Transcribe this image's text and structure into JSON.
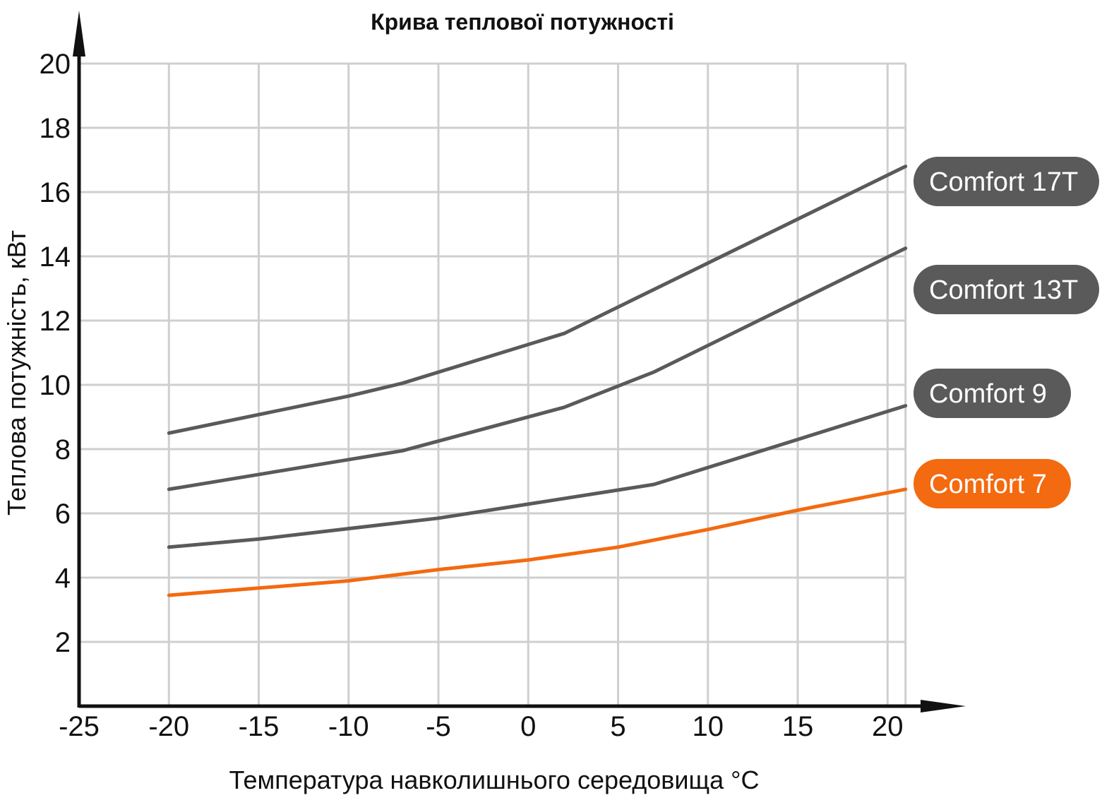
{
  "chart_data": {
    "type": "line",
    "title": "Крива теплової потужності",
    "xlabel": "Температура навколишнього середовища °C",
    "ylabel": "Теплова потужність, кВт",
    "xlim": [
      -25,
      21
    ],
    "ylim": [
      0,
      20
    ],
    "x_ticks": [
      -25,
      -20,
      -15,
      -10,
      -5,
      0,
      5,
      10,
      15,
      20
    ],
    "x_tick_labels": [
      "-25",
      "-20",
      "-15",
      "-10",
      "-5",
      "0",
      "5",
      "10",
      "15",
      "20"
    ],
    "y_ticks": [
      2,
      4,
      6,
      8,
      10,
      12,
      14,
      16,
      18,
      20
    ],
    "y_tick_labels": [
      "2",
      "4",
      "6",
      "8",
      "10",
      "12",
      "14",
      "16",
      "18",
      "20"
    ],
    "x_grid": [
      -20,
      -15,
      -10,
      -5,
      0,
      5,
      10,
      15,
      20,
      21
    ],
    "grid": true,
    "legend_placement": "right, at line ends",
    "series": [
      {
        "name": "Comfort 17T",
        "color": "#5a5a5a",
        "x": [
          -20,
          -10,
          -7,
          2,
          21
        ],
        "y": [
          8.5,
          9.65,
          10.05,
          11.6,
          16.8
        ]
      },
      {
        "name": "Comfort 13T",
        "color": "#5a5a5a",
        "x": [
          -20,
          -7,
          2,
          7,
          21
        ],
        "y": [
          6.75,
          7.95,
          9.3,
          10.4,
          14.25
        ]
      },
      {
        "name": "Comfort 9",
        "color": "#5a5a5a",
        "x": [
          -20,
          -15,
          -5,
          7,
          21
        ],
        "y": [
          4.95,
          5.2,
          5.85,
          6.9,
          9.35
        ]
      },
      {
        "name": "Comfort 7",
        "color": "#f36a10",
        "x": [
          -20,
          -10,
          -5,
          0,
          5,
          10,
          15,
          21
        ],
        "y": [
          3.45,
          3.9,
          4.25,
          4.55,
          4.95,
          5.5,
          6.1,
          6.75
        ]
      }
    ]
  },
  "colors": {
    "grid": "#cfcfcf",
    "axis": "#111111",
    "series_gray": "#5a5a5a",
    "series_orange": "#f36a10"
  }
}
